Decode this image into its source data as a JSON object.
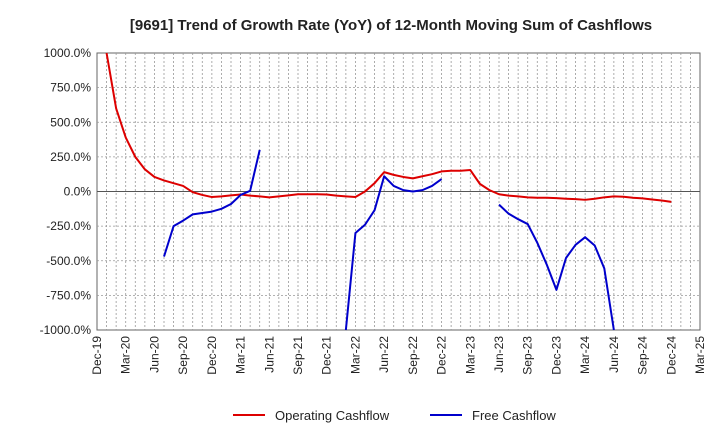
{
  "chart_data": {
    "type": "line",
    "title": "[9691]  Trend of Growth Rate (YoY) of 12-Month Moving Sum of Cashflows",
    "xlabel": "",
    "ylabel": "",
    "ylim": [
      -1000,
      1000
    ],
    "y_ticks": [
      1000,
      750,
      500,
      250,
      0,
      -250,
      -500,
      -750,
      -1000
    ],
    "y_tick_labels": [
      "1000.0%",
      "750.0%",
      "500.0%",
      "250.0%",
      "0.0%",
      "-250.0%",
      "-500.0%",
      "-750.0%",
      "-1000.0%"
    ],
    "x_ticks": [
      "2019-12",
      "2020-03",
      "2020-06",
      "2020-09",
      "2020-12",
      "2021-03",
      "2021-06",
      "2021-09",
      "2021-12",
      "2022-03",
      "2022-06",
      "2022-09",
      "2022-12",
      "2023-03",
      "2023-06",
      "2023-09",
      "2023-12",
      "2024-03",
      "2024-06",
      "2024-09",
      "2024-12",
      "2025-03"
    ],
    "x_tick_labels": [
      "Dec-19",
      "Mar-20",
      "Jun-20",
      "Sep-20",
      "Dec-20",
      "Mar-21",
      "Jun-21",
      "Sep-21",
      "Dec-21",
      "Mar-22",
      "Jun-22",
      "Sep-22",
      "Dec-22",
      "Mar-23",
      "Jun-23",
      "Sep-23",
      "Dec-23",
      "Mar-24",
      "Jun-24",
      "Sep-24",
      "Dec-24",
      "Mar-25"
    ],
    "grid": true,
    "legend_position": "bottom",
    "series": [
      {
        "name": "Operating Cashflow",
        "color": "#dd0000",
        "points": [
          [
            "2020-01",
            1000
          ],
          [
            "2020-02",
            600
          ],
          [
            "2020-03",
            390
          ],
          [
            "2020-04",
            250
          ],
          [
            "2020-05",
            160
          ],
          [
            "2020-06",
            105
          ],
          [
            "2020-07",
            80
          ],
          [
            "2020-08",
            60
          ],
          [
            "2020-09",
            40
          ],
          [
            "2020-10",
            -5
          ],
          [
            "2020-11",
            -25
          ],
          [
            "2020-12",
            -40
          ],
          [
            "2021-01",
            -35
          ],
          [
            "2021-02",
            -28
          ],
          [
            "2021-03",
            -22
          ],
          [
            "2021-04",
            -30
          ],
          [
            "2021-05",
            -35
          ],
          [
            "2021-06",
            -42
          ],
          [
            "2021-07",
            -35
          ],
          [
            "2021-08",
            -28
          ],
          [
            "2021-09",
            -20
          ],
          [
            "2021-10",
            -20
          ],
          [
            "2021-11",
            -20
          ],
          [
            "2021-12",
            -22
          ],
          [
            "2022-01",
            -30
          ],
          [
            "2022-02",
            -35
          ],
          [
            "2022-03",
            -40
          ],
          [
            "2022-04",
            0
          ],
          [
            "2022-05",
            60
          ],
          [
            "2022-06",
            140
          ],
          [
            "2022-07",
            120
          ],
          [
            "2022-08",
            105
          ],
          [
            "2022-09",
            95
          ],
          [
            "2022-10",
            110
          ],
          [
            "2022-11",
            125
          ],
          [
            "2022-12",
            145
          ],
          [
            "2023-01",
            150
          ],
          [
            "2023-02",
            150
          ],
          [
            "2023-03",
            155
          ],
          [
            "2023-04",
            55
          ],
          [
            "2023-05",
            10
          ],
          [
            "2023-06",
            -20
          ],
          [
            "2023-07",
            -30
          ],
          [
            "2023-08",
            -35
          ],
          [
            "2023-09",
            -42
          ],
          [
            "2023-10",
            -45
          ],
          [
            "2023-11",
            -45
          ],
          [
            "2023-12",
            -48
          ],
          [
            "2024-01",
            -52
          ],
          [
            "2024-02",
            -55
          ],
          [
            "2024-03",
            -60
          ],
          [
            "2024-04",
            -52
          ],
          [
            "2024-05",
            -42
          ],
          [
            "2024-06",
            -35
          ],
          [
            "2024-07",
            -38
          ],
          [
            "2024-08",
            -45
          ],
          [
            "2024-09",
            -50
          ],
          [
            "2024-10",
            -58
          ],
          [
            "2024-11",
            -65
          ],
          [
            "2024-12",
            -75
          ]
        ]
      },
      {
        "name": "Free Cashflow",
        "color": "#0000cc",
        "segments": [
          [
            [
              "2020-07",
              -470
            ],
            [
              "2020-08",
              -250
            ],
            [
              "2020-09",
              -210
            ],
            [
              "2020-10",
              -165
            ],
            [
              "2020-11",
              -155
            ],
            [
              "2020-12",
              -145
            ],
            [
              "2021-01",
              -125
            ],
            [
              "2021-02",
              -90
            ],
            [
              "2021-03",
              -25
            ],
            [
              "2021-04",
              5
            ],
            [
              "2021-05",
              300
            ]
          ],
          [
            [
              "2022-02",
              -1000
            ],
            [
              "2022-03",
              -300
            ],
            [
              "2022-04",
              -240
            ],
            [
              "2022-05",
              -135
            ],
            [
              "2022-06",
              110
            ],
            [
              "2022-07",
              40
            ],
            [
              "2022-08",
              10
            ],
            [
              "2022-09",
              0
            ],
            [
              "2022-10",
              10
            ],
            [
              "2022-11",
              40
            ],
            [
              "2022-12",
              90
            ]
          ],
          [
            [
              "2023-06",
              -95
            ],
            [
              "2023-07",
              -160
            ],
            [
              "2023-08",
              -200
            ],
            [
              "2023-09",
              -235
            ],
            [
              "2023-10",
              -370
            ],
            [
              "2023-11",
              -530
            ],
            [
              "2023-12",
              -710
            ],
            [
              "2024-01",
              -480
            ],
            [
              "2024-02",
              -385
            ],
            [
              "2024-03",
              -330
            ],
            [
              "2024-04",
              -390
            ],
            [
              "2024-05",
              -555
            ],
            [
              "2024-06",
              -1000
            ]
          ]
        ]
      }
    ]
  }
}
